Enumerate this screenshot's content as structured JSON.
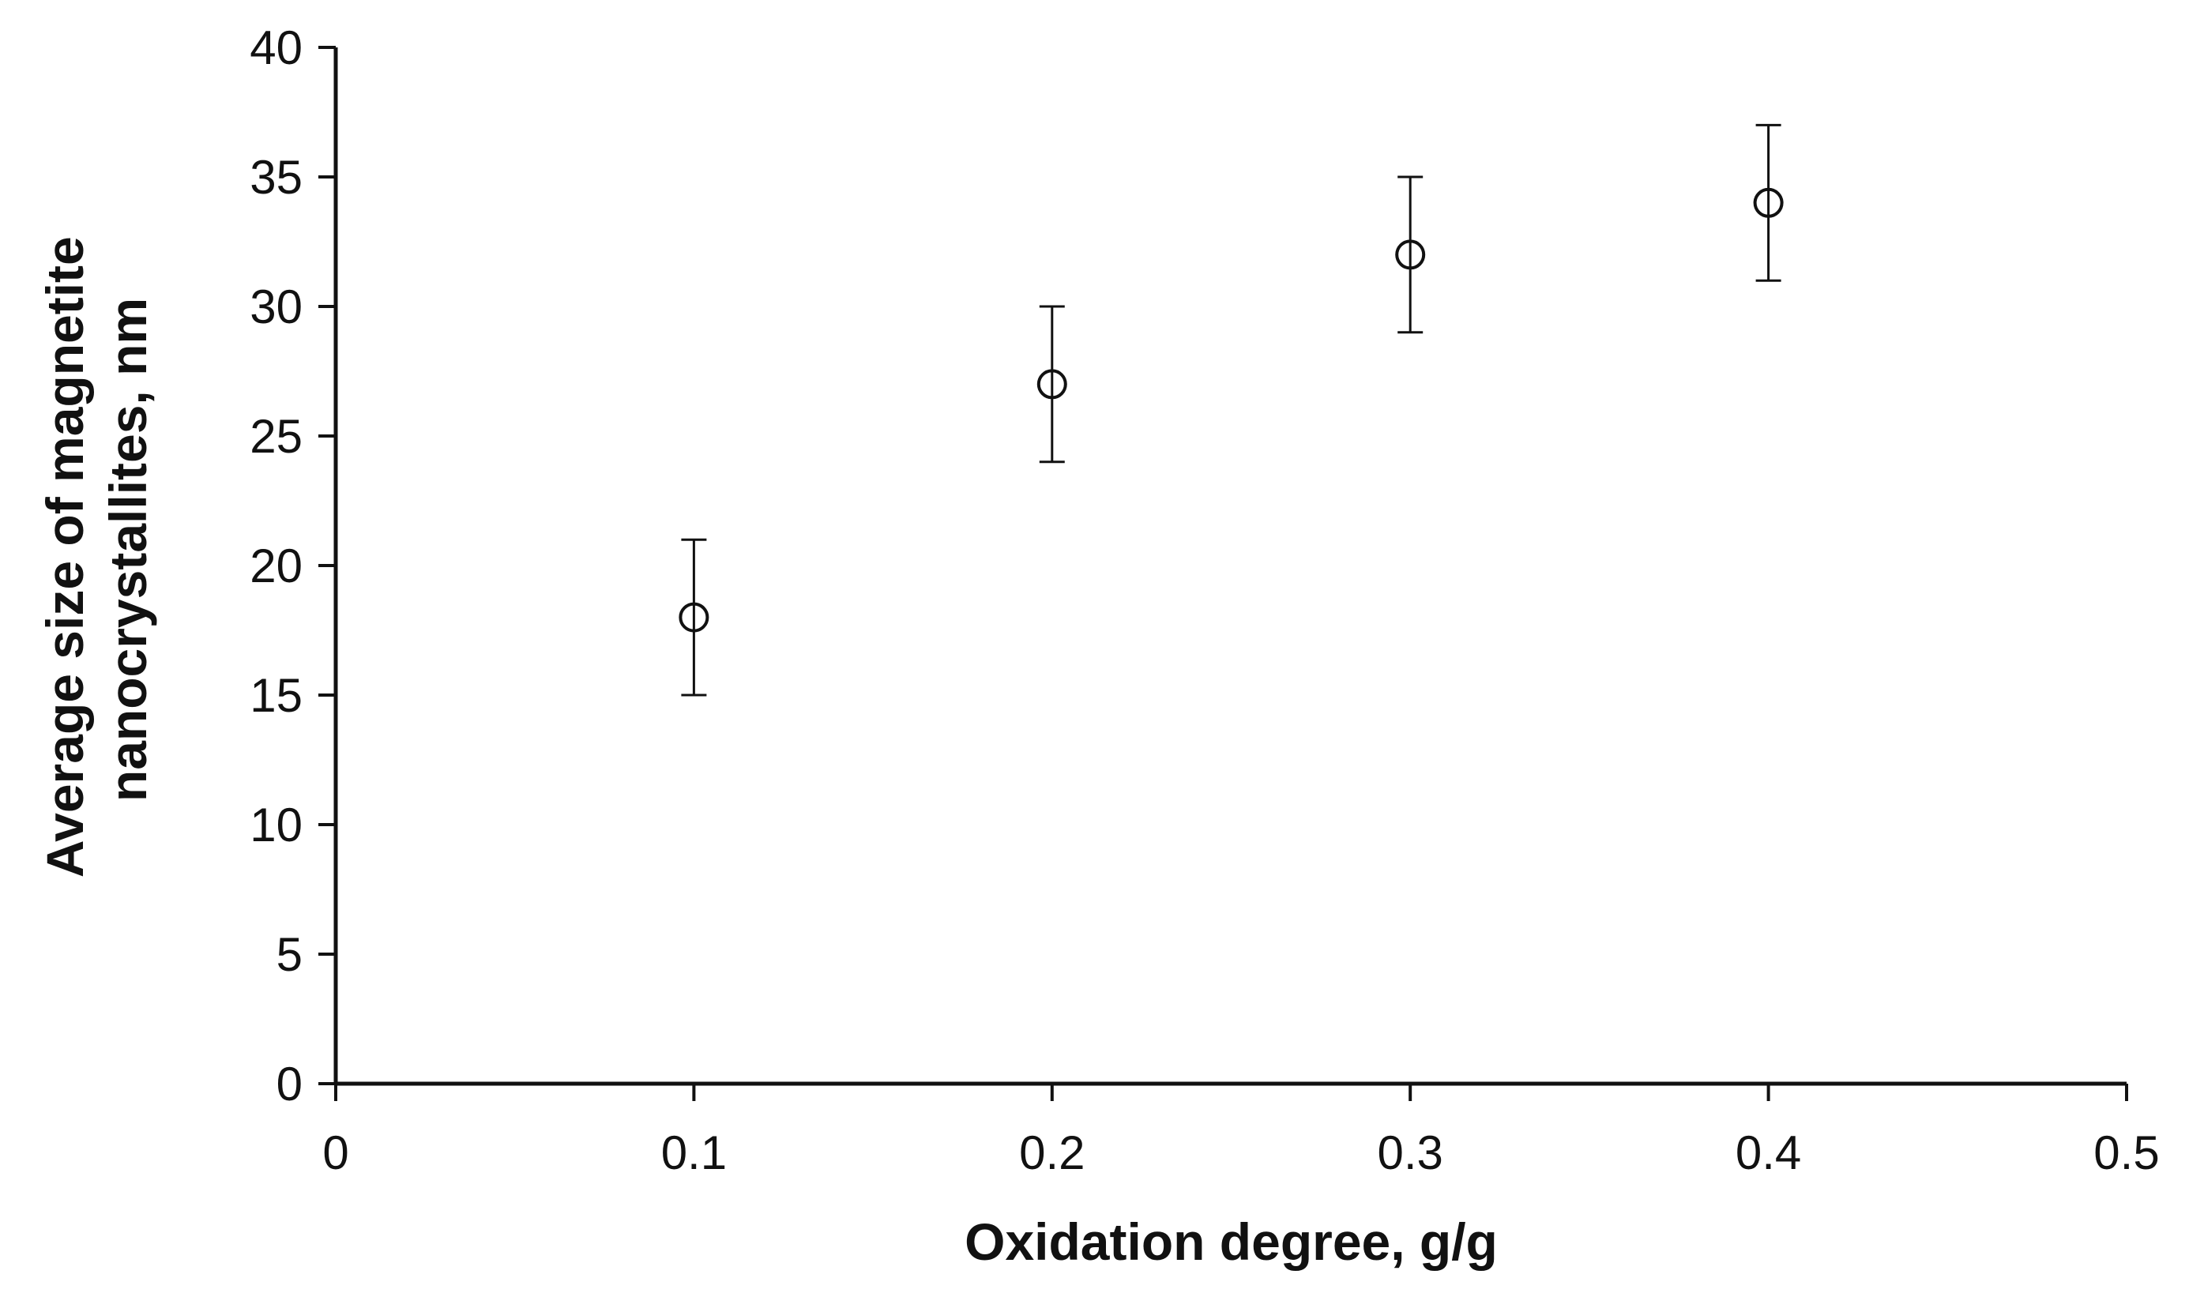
{
  "chart_data": {
    "type": "scatter",
    "title": "",
    "xlabel": "Oxidation degree, g/g",
    "ylabel_lines": [
      "Average size of magnetite",
      "nanocrystallites, nm"
    ],
    "xlim": [
      0,
      0.5
    ],
    "ylim": [
      0,
      40
    ],
    "x_ticks": [
      "0",
      "0.1",
      "0.2",
      "0.3",
      "0.4",
      "0.5"
    ],
    "y_ticks": [
      "0",
      "5",
      "10",
      "15",
      "20",
      "25",
      "30",
      "35",
      "40"
    ],
    "grid": false,
    "legend": "none",
    "marker": "open-circle",
    "color": "#111111",
    "series": [
      {
        "x": [
          0.1,
          0.2,
          0.3,
          0.4
        ],
        "y": [
          18,
          27,
          32,
          34
        ],
        "error": [
          3,
          3,
          3,
          3
        ]
      }
    ]
  }
}
